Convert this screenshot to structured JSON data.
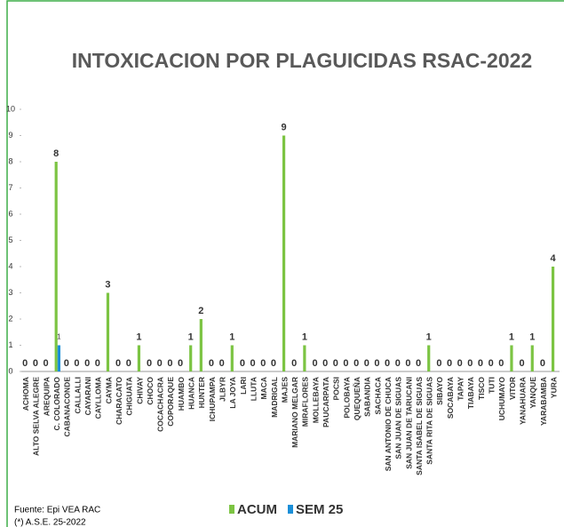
{
  "chart_data": {
    "type": "bar",
    "title": "INTOXICACION POR PLAGUICIDAS RSAC-2022",
    "categories": [
      "ACHOMA",
      "ALTO SELVA ALEGRE",
      "AREQUIPA",
      "C. COLORADO",
      "CABANACONDE",
      "CALLALLI",
      "CAYARANI",
      "CAYLLOMA",
      "CAYMA",
      "CHARACATO",
      "CHIGUATA",
      "CHIVAY",
      "CHOCO",
      "COCACHACRA",
      "COPORAQUE",
      "HUAMBO",
      "HUANCA",
      "HUNTER",
      "ICHUPAMPA",
      "JLBYR",
      "LA JOYA",
      "LARI",
      "LLUTA",
      "MACA",
      "MADRIGAL",
      "MAJES",
      "MARIANO MELGAR",
      "MIRAFLORES",
      "MOLLEBAYA",
      "PAUCARPATA",
      "POCSI",
      "POLOBAYA",
      "QUEQUEÑA",
      "SABANDIA",
      "SACHACA",
      "SAN ANTONIO DE CHUCA",
      "SAN JUAN DE SIGUAS",
      "SAN JUAN DE TARUCANI",
      "SANTA ISABEL DE SIGUAS",
      "SANTA RITA DE SIGUAS",
      "SIBAYO",
      "SOCABAYA",
      "TAPAY",
      "TIABAYA",
      "TISCO",
      "TUTI",
      "UCHUMAYO",
      "VITOR",
      "YANAHUARA",
      "YANQUE",
      "YARABAMBA",
      "YURA"
    ],
    "series": [
      {
        "name": "ACUM",
        "color": "#7cc443",
        "values": [
          0,
          0,
          0,
          8,
          0,
          0,
          0,
          0,
          3,
          0,
          0,
          1,
          0,
          0,
          0,
          0,
          1,
          2,
          0,
          0,
          1,
          0,
          0,
          0,
          0,
          9,
          0,
          1,
          0,
          0,
          0,
          0,
          0,
          0,
          0,
          0,
          0,
          0,
          0,
          1,
          0,
          0,
          0,
          0,
          0,
          0,
          0,
          1,
          0,
          1,
          0,
          4
        ]
      },
      {
        "name": "SEM 25",
        "color": "#1b8fd8",
        "values": [
          0,
          0,
          0,
          1,
          0,
          0,
          0,
          0,
          0,
          0,
          0,
          0,
          0,
          0,
          0,
          0,
          0,
          0,
          0,
          0,
          0,
          0,
          0,
          0,
          0,
          0,
          0,
          0,
          0,
          0,
          0,
          0,
          0,
          0,
          0,
          0,
          0,
          0,
          0,
          0,
          0,
          0,
          0,
          0,
          0,
          0,
          0,
          0,
          0,
          0,
          0,
          0
        ]
      }
    ],
    "ylim": [
      0,
      10
    ],
    "yticks": [
      0,
      1,
      2,
      3,
      4,
      5,
      6,
      7,
      8,
      9,
      10
    ],
    "notes": [
      "Fuente:  Epi VEA RAC",
      "(*) A.S.E. 25-2022"
    ]
  }
}
